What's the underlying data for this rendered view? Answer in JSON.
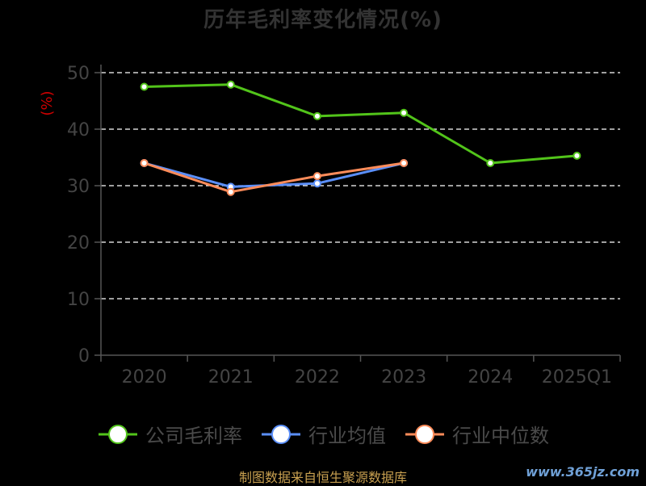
{
  "title": "历年毛利率变化情况(%)",
  "footer": "制图数据来自恒生聚源数据库",
  "watermark": "www.365jz.com",
  "colors": {
    "background": "#000000",
    "axis": "#555555",
    "grid": "#ffffff",
    "tick_label": "#444444",
    "unit_label": "#cc0000"
  },
  "legend": [
    {
      "name": "公司毛利率",
      "color": "#52c41a"
    },
    {
      "name": "行业均值",
      "color": "#5b8ff9"
    },
    {
      "name": "行业中位数",
      "color": "#ff8c5a"
    }
  ],
  "chart_data": {
    "type": "line",
    "title": "历年毛利率变化情况(%)",
    "xlabel": "",
    "ylabel": "(%)",
    "categories": [
      "2020",
      "2021",
      "2022",
      "2023",
      "2024",
      "2025Q1"
    ],
    "ylim": [
      0,
      50
    ],
    "yticks": [
      0,
      10,
      20,
      30,
      40,
      50
    ],
    "grid": true,
    "legend_position": "bottom",
    "series": [
      {
        "name": "公司毛利率",
        "color": "#52c41a",
        "values": [
          47.5,
          47.9,
          42.3,
          42.9,
          34.0,
          35.3
        ]
      },
      {
        "name": "行业均值",
        "color": "#5b8ff9",
        "values": [
          34.0,
          29.8,
          30.4,
          34.0,
          null,
          null
        ]
      },
      {
        "name": "行业中位数",
        "color": "#ff8c5a",
        "values": [
          34.0,
          28.9,
          31.7,
          34.0,
          null,
          null
        ]
      }
    ]
  }
}
